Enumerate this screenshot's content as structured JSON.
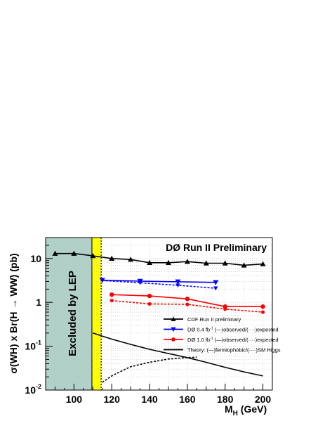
{
  "chart_data": {
    "type": "line",
    "title": "DØ Run II Preliminary",
    "xlabel_main": "M",
    "xlabel_sub": "H",
    "xlabel_unit": " (GeV)",
    "ylabel": "σ(WH) x Br(H → WW) (pb)",
    "xlim": [
      85,
      205
    ],
    "ylim": [
      0.01,
      30
    ],
    "yscale": "log",
    "grid": true,
    "legend_position": "bottom-right",
    "x_ticks": [
      {
        "value": 100,
        "label": "100"
      },
      {
        "value": 120,
        "label": "120"
      },
      {
        "value": 140,
        "label": "140"
      },
      {
        "value": 160,
        "label": "160"
      },
      {
        "value": 180,
        "label": "180"
      },
      {
        "value": 200,
        "label": "200"
      }
    ],
    "y_ticks": [
      {
        "value": 10,
        "base": "10",
        "exp": ""
      },
      {
        "value": 1,
        "base": "1",
        "exp": ""
      },
      {
        "value": 0.1,
        "base": "10",
        "exp": "-1"
      },
      {
        "value": 0.01,
        "base": "10",
        "exp": "-2"
      }
    ],
    "excluded_region": {
      "label": "Excluded by LEP",
      "x_min": 85,
      "x_max": 109.5,
      "color": "#b0d0c8"
    },
    "yellow_band": {
      "x_min": 109.5,
      "x_max": 114.4,
      "color": "#ffff00"
    },
    "series": [
      {
        "name": "CDF Run II preliminary",
        "color": "#000000",
        "marker": "triangle-up",
        "dashed": false,
        "x": [
          90,
          100,
          110,
          120,
          130,
          140,
          150,
          160,
          170,
          180,
          190,
          200
        ],
        "y": [
          13,
          13,
          11.5,
          10,
          9.5,
          8,
          8,
          8.5,
          7.8,
          7.8,
          7,
          7.5
        ]
      },
      {
        "name": "DØ 0.4 fb⁻¹ observed",
        "color": "#0000ff",
        "marker": "triangle-down",
        "dashed": false,
        "x": [
          115,
          135,
          155,
          175
        ],
        "y": [
          3.2,
          3.05,
          2.95,
          2.85
        ]
      },
      {
        "name": "DØ 0.4 fb⁻¹ expected",
        "color": "#0000ff",
        "marker": "triangle-down",
        "dashed": true,
        "x": [
          115,
          135,
          155,
          175
        ],
        "y": [
          3.15,
          2.8,
          2.45,
          2.1
        ]
      },
      {
        "name": "DØ 1.0 fb⁻¹ observed",
        "color": "#ff0000",
        "marker": "circle",
        "dashed": false,
        "x": [
          120,
          140,
          160,
          180,
          200
        ],
        "y": [
          1.5,
          1.4,
          1.2,
          0.8,
          0.8
        ]
      },
      {
        "name": "DØ 1.0 fb⁻¹ expected",
        "color": "#ff0000",
        "marker": "circle",
        "dashed": true,
        "x": [
          120,
          140,
          160,
          180,
          200
        ],
        "y": [
          1.1,
          0.92,
          0.9,
          0.7,
          0.6
        ]
      },
      {
        "name": "Theory fermiophobic",
        "color": "#000000",
        "marker": "none",
        "dashed": false,
        "x": [
          110,
          115,
          120,
          130,
          140,
          150,
          160,
          170,
          180,
          190,
          200
        ],
        "y": [
          0.2,
          0.17,
          0.145,
          0.11,
          0.085,
          0.068,
          0.055,
          0.043,
          0.033,
          0.026,
          0.021
        ]
      },
      {
        "name": "Theory SM Higgs",
        "color": "#000000",
        "marker": "none",
        "dashed": true,
        "x": [
          115,
          120,
          125,
          130,
          140,
          150,
          160,
          165
        ],
        "y": [
          0.015,
          0.021,
          0.027,
          0.034,
          0.043,
          0.051,
          0.055,
          0.056
        ]
      }
    ],
    "legend": [
      {
        "text": "CDF Run II preliminary",
        "color": "#000000",
        "marker": "triangle-up"
      },
      {
        "text": "DØ 0.4 fb",
        "sup": "-1",
        "rest": " (—)observed/(····)expected",
        "color": "#0000ff",
        "marker": "triangle-down"
      },
      {
        "text": "DØ 1.0 fb",
        "sup": "-1",
        "rest": " (—)observed/(····)expected",
        "color": "#ff0000",
        "marker": "circle"
      },
      {
        "text": "Theory: (—)fermiophobic/(····)SM Higgs",
        "color": "#000000",
        "marker": "none"
      }
    ]
  }
}
